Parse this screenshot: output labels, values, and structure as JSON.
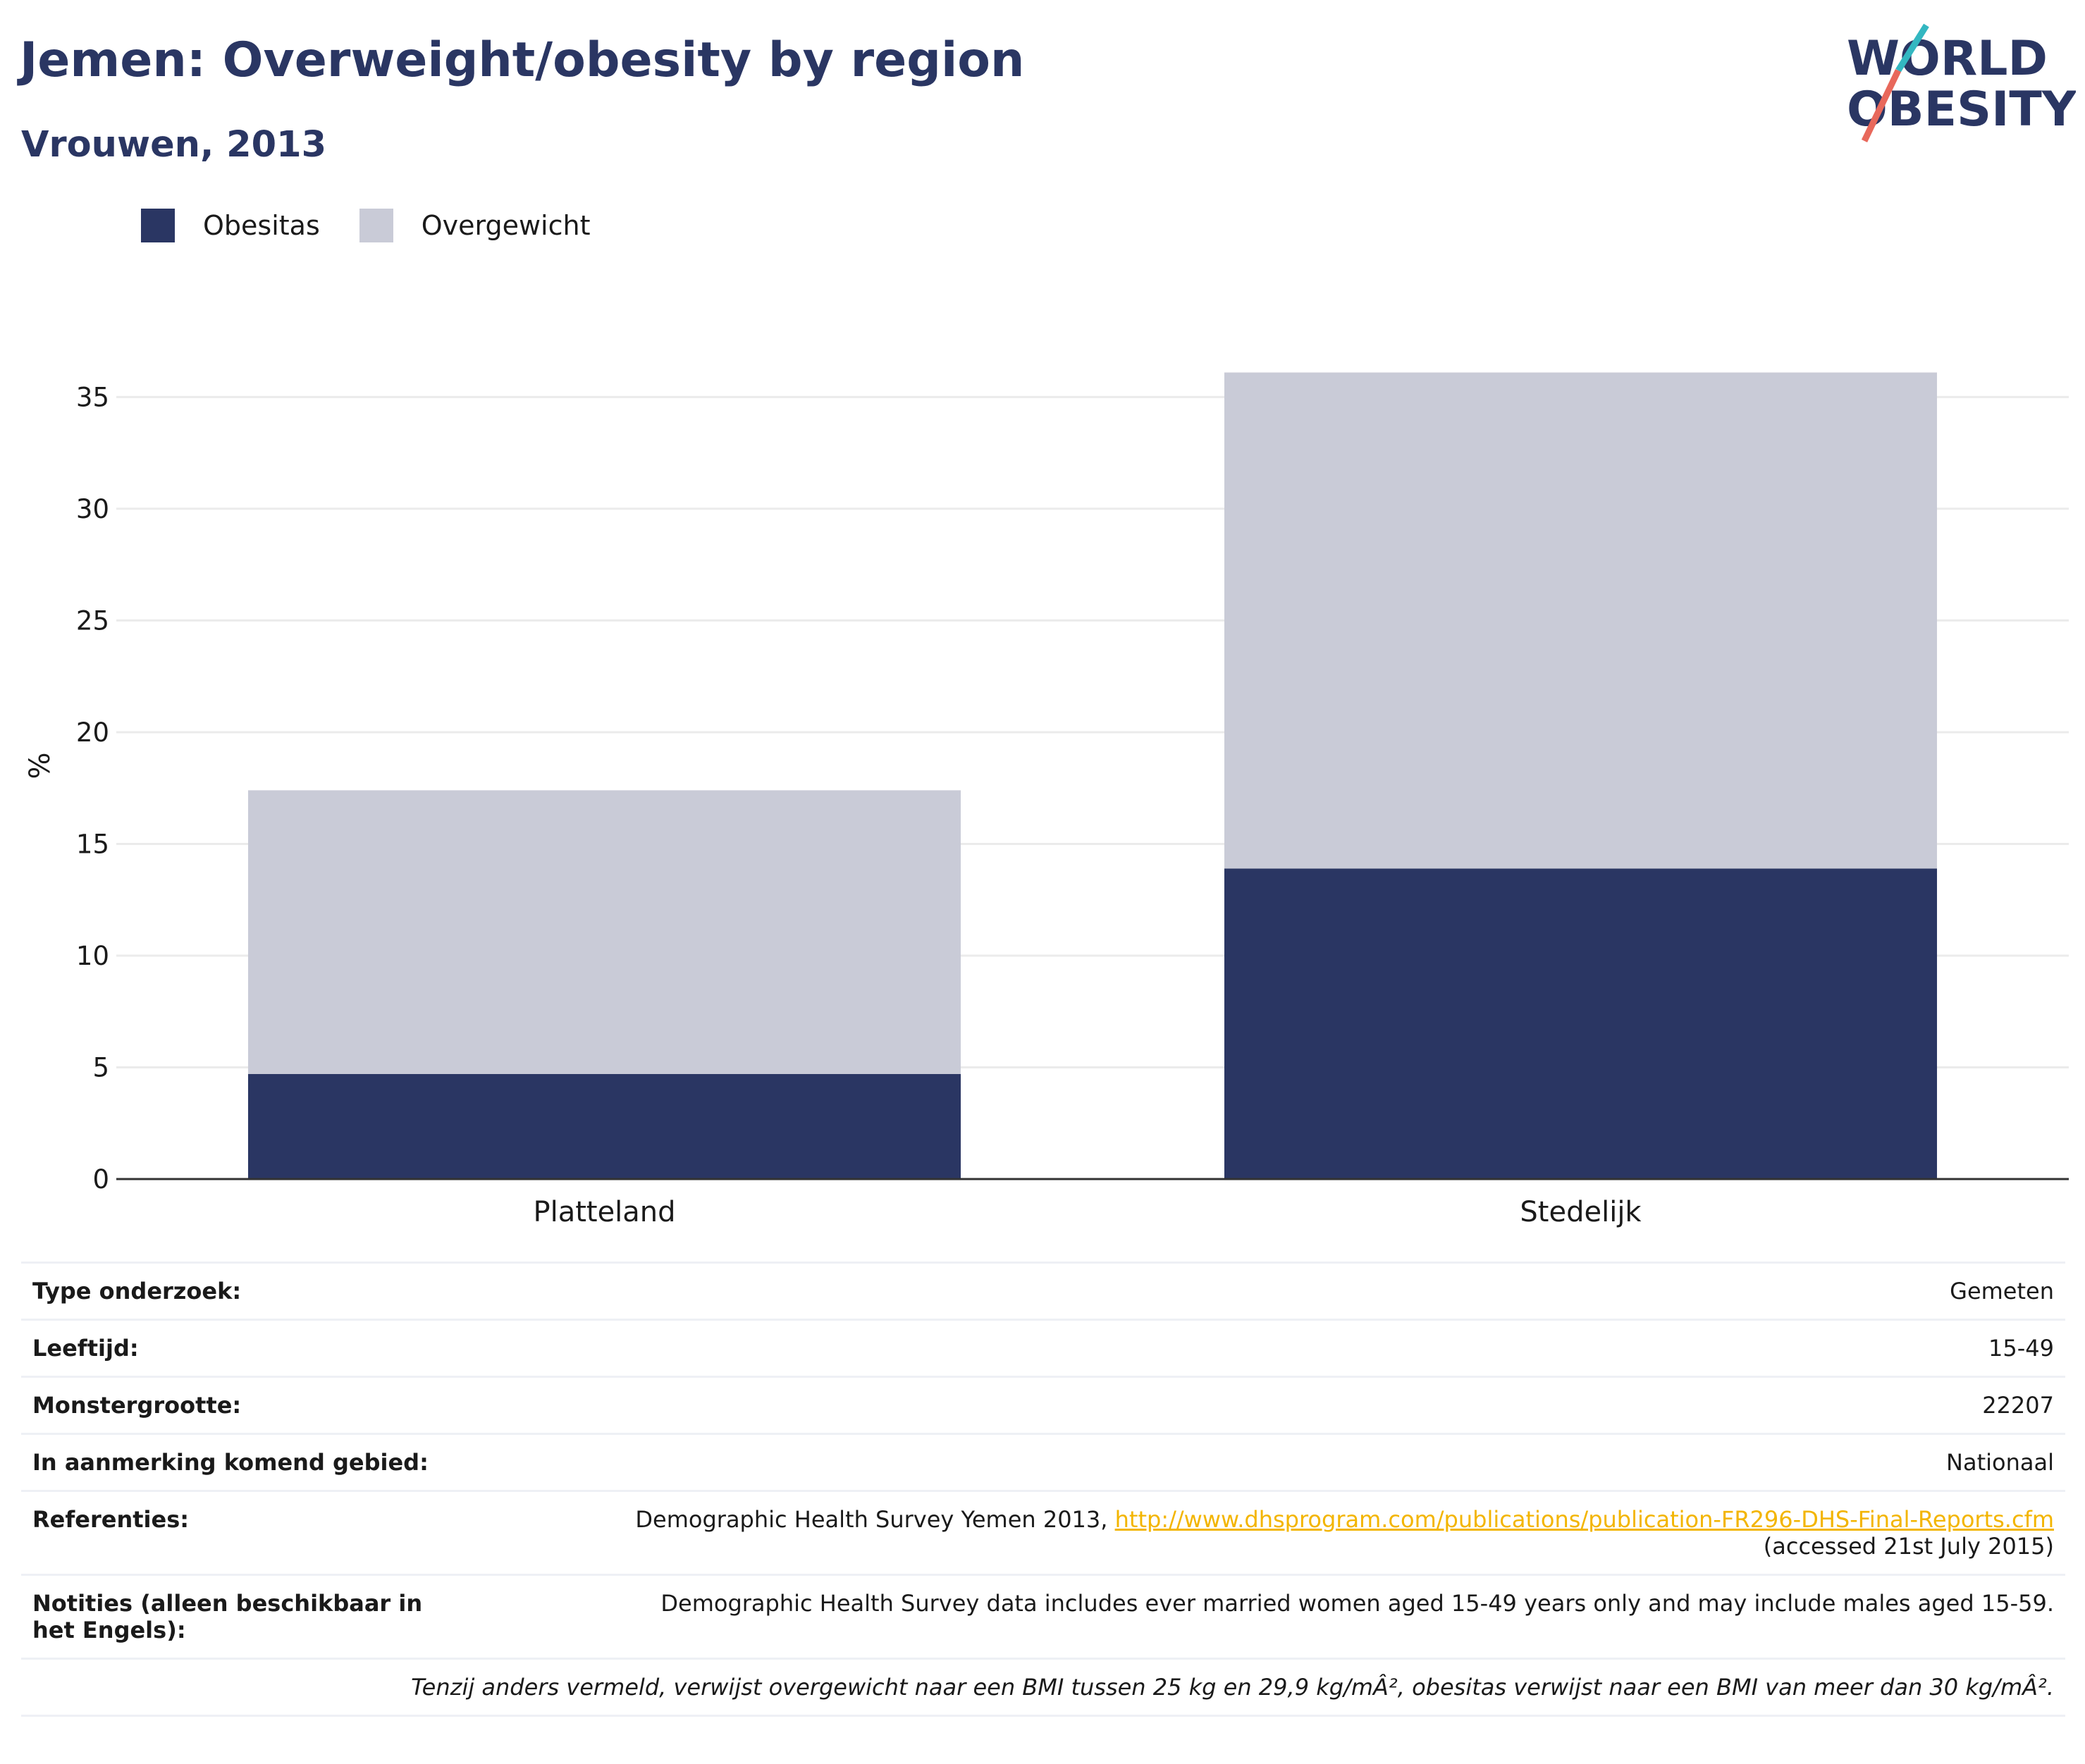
{
  "header": {
    "title": "Jemen: Overweight/obesity by region",
    "subtitle": "Vrouwen, 2013"
  },
  "logo": {
    "line1": "WORLD",
    "line2": "OBESITY"
  },
  "colors": {
    "obesity": "#2a3663",
    "overweight": "#c9cbd7",
    "accent_red": "#e8685b",
    "accent_teal": "#33b7c1",
    "link": "#f3b500"
  },
  "chart_data": {
    "type": "bar",
    "stacked": true,
    "categories": [
      "Platteland",
      "Stedelijk"
    ],
    "series": [
      {
        "name": "Obesitas",
        "values": [
          4.7,
          13.9
        ]
      },
      {
        "name": "Overgewicht",
        "values": [
          12.7,
          22.2
        ]
      }
    ],
    "ylabel": "%",
    "xlabel": "",
    "ylim": [
      0,
      37
    ],
    "yticks": [
      0,
      5,
      10,
      15,
      20,
      25,
      30,
      35
    ],
    "grid": true,
    "legend": "top-left"
  },
  "info": {
    "survey_type": {
      "label": "Type onderzoek:",
      "value": "Gemeten"
    },
    "age": {
      "label": "Leeftijd:",
      "value": "15-49"
    },
    "sample": {
      "label": "Monstergrootte:",
      "value": "22207"
    },
    "area": {
      "label": "In aanmerking komend gebied:",
      "value": "Nationaal"
    },
    "references": {
      "label": "Referenties:",
      "text": "Demographic Health Survey Yemen 2013, ",
      "link": "http://www.dhsprogram.com/publications/publication-FR296-DHS-Final-Reports.cfm",
      "accessed": "(accessed 21st July 2015)"
    },
    "notes": {
      "label": "Notities (alleen beschikbaar in het Engels):",
      "value": "Demographic Health Survey data includes ever married women aged 15-49 years only and may include males aged 15-59."
    },
    "footnote": "Tenzij anders vermeld, verwijst overgewicht naar een BMI tussen 25 kg en 29,9 kg/mÂ², obesitas verwijst naar een BMI van meer dan 30 kg/mÂ²."
  }
}
